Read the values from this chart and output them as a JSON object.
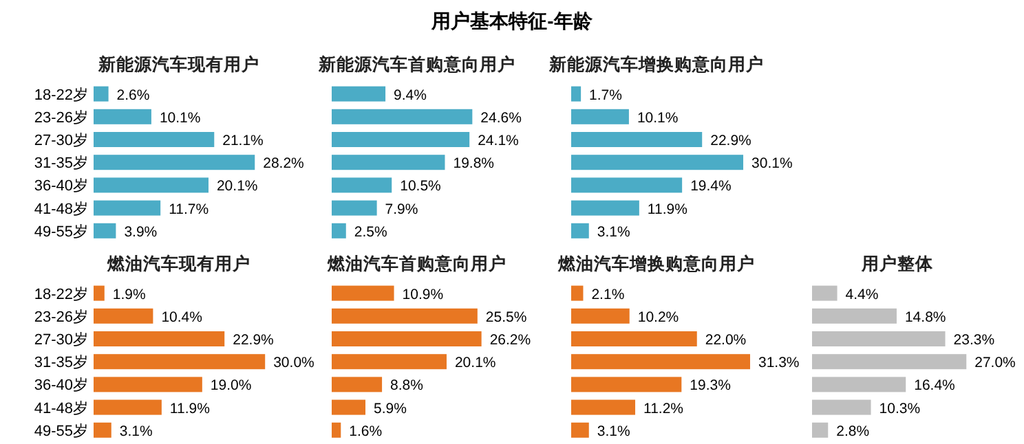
{
  "chart_data": [
    {
      "type": "other",
      "title": "用户基本特征-年龄"
    },
    {
      "type": "bar",
      "orientation": "horizontal",
      "subtitle": "新能源汽车现有用户",
      "categories": [
        "18-22岁",
        "23-26岁",
        "27-30岁",
        "31-35岁",
        "36-40岁",
        "41-48岁",
        "49-55岁"
      ],
      "series": [
        {
          "color": "#4bacc6",
          "values": [
            2.6,
            10.1,
            21.1,
            28.2,
            20.1,
            11.7,
            3.9
          ],
          "value_labels": [
            "2.6%",
            "10.1%",
            "21.1%",
            "28.2%",
            "20.1%",
            "11.7%",
            "3.9%"
          ]
        }
      ]
    },
    {
      "type": "bar",
      "orientation": "horizontal",
      "subtitle": "新能源汽车首购意向用户",
      "categories": [
        null,
        null,
        null,
        null,
        null,
        null,
        null
      ],
      "series": [
        {
          "color": "#4bacc6",
          "values": [
            9.4,
            24.6,
            24.1,
            19.8,
            10.5,
            7.9,
            2.5
          ],
          "value_labels": [
            "9.4%",
            "24.6%",
            "24.1%",
            "19.8%",
            "10.5%",
            "7.9%",
            "2.5%"
          ]
        }
      ]
    },
    {
      "type": "bar",
      "orientation": "horizontal",
      "subtitle": "新能源汽车增换购意向用户",
      "categories": [
        null,
        null,
        null,
        null,
        null,
        null,
        null
      ],
      "series": [
        {
          "color": "#4bacc6",
          "values": [
            1.7,
            10.1,
            22.9,
            30.1,
            19.4,
            11.9,
            3.1
          ],
          "value_labels": [
            "1.7%",
            "10.1%",
            "22.9%",
            "30.1%",
            "19.4%",
            "11.9%",
            "3.1%"
          ]
        }
      ]
    },
    {
      "type": "bar",
      "orientation": "horizontal",
      "subtitle": "燃油汽车现有用户",
      "categories": [
        "18-22岁",
        "23-26岁",
        "27-30岁",
        "31-35岁",
        "36-40岁",
        "41-48岁",
        "49-55岁"
      ],
      "series": [
        {
          "color": "#e87722",
          "values": [
            1.9,
            10.4,
            22.9,
            30.0,
            19.0,
            11.9,
            3.1
          ],
          "value_labels": [
            "1.9%",
            "10.4%",
            "22.9%",
            "30.0%",
            "19.0%",
            "11.9%",
            "3.1%"
          ]
        }
      ]
    },
    {
      "type": "bar",
      "orientation": "horizontal",
      "subtitle": "燃油汽车首购意向用户",
      "categories": [
        null,
        null,
        null,
        null,
        null,
        null,
        null
      ],
      "series": [
        {
          "color": "#e87722",
          "values": [
            10.9,
            25.5,
            26.2,
            20.1,
            8.8,
            5.9,
            1.6
          ],
          "value_labels": [
            "10.9%",
            "25.5%",
            "26.2%",
            "20.1%",
            "8.8%",
            "5.9%",
            "1.6%"
          ]
        }
      ]
    },
    {
      "type": "bar",
      "orientation": "horizontal",
      "subtitle": "燃油汽车增换购意向用户",
      "categories": [
        null,
        null,
        null,
        null,
        null,
        null,
        null
      ],
      "series": [
        {
          "color": "#e87722",
          "values": [
            2.1,
            10.2,
            22.0,
            31.3,
            19.3,
            11.2,
            3.1
          ],
          "value_labels": [
            "2.1%",
            "10.2%",
            "22.0%",
            "31.3%",
            "19.3%",
            "11.2%",
            "3.1%"
          ]
        }
      ]
    },
    {
      "type": "bar",
      "orientation": "horizontal",
      "subtitle": "用户整体",
      "categories": [
        null,
        null,
        null,
        null,
        null,
        null,
        null
      ],
      "series": [
        {
          "color": "#bfbfbf",
          "values": [
            4.4,
            14.8,
            23.3,
            27.0,
            16.4,
            10.3,
            2.8
          ],
          "value_labels": [
            "4.4%",
            "14.8%",
            "23.3%",
            "27.0%",
            "16.4%",
            "10.3%",
            "2.8%"
          ]
        }
      ]
    }
  ]
}
